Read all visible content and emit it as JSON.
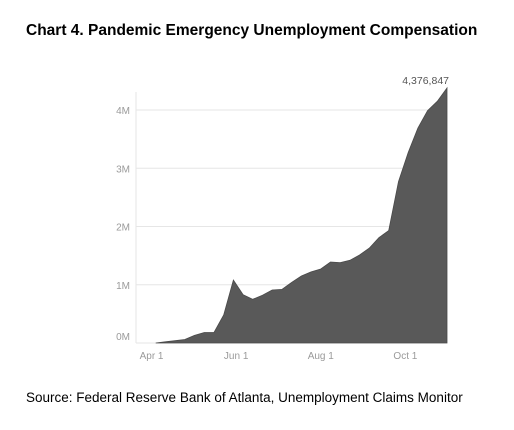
{
  "title": "Chart 4. Pandemic Emergency Unemployment Compensation",
  "source": "Source: Federal Reserve Bank of Atlanta, Unemployment Claims Monitor",
  "colors": {
    "area": "#595959",
    "grid": "#e6e6e6",
    "ticks": "#9a9a9a"
  },
  "chart_data": {
    "type": "area",
    "title": "Chart 4. Pandemic Emergency Unemployment Compensation",
    "xlabel": "",
    "ylabel": "",
    "x_ticks": [
      "Apr 1",
      "Jun 1",
      "Aug 1",
      "Oct 1"
    ],
    "y_ticks": [
      "0M",
      "1M",
      "2M",
      "3M",
      "4M"
    ],
    "ylim": [
      0,
      4500000
    ],
    "grid": true,
    "series": [
      {
        "x": [
          "2020-04-04",
          "2020-04-11",
          "2020-04-18",
          "2020-04-25",
          "2020-05-02",
          "2020-05-09",
          "2020-05-16",
          "2020-05-23",
          "2020-05-30",
          "2020-06-06",
          "2020-06-13",
          "2020-06-20",
          "2020-06-27",
          "2020-07-04",
          "2020-07-11",
          "2020-07-18",
          "2020-07-25",
          "2020-08-01",
          "2020-08-08",
          "2020-08-15",
          "2020-08-22",
          "2020-08-29",
          "2020-09-05",
          "2020-09-12",
          "2020-09-19",
          "2020-09-26",
          "2020-10-03",
          "2020-10-10",
          "2020-10-17",
          "2020-10-24",
          "2020-10-31"
        ],
        "values": [
          0,
          20000,
          40000,
          60000,
          130000,
          180000,
          180000,
          480000,
          1080000,
          830000,
          750000,
          820000,
          910000,
          920000,
          1040000,
          1150000,
          1220000,
          1270000,
          1390000,
          1380000,
          1420000,
          1510000,
          1630000,
          1810000,
          1930000,
          2770000,
          3270000,
          3690000,
          3990000,
          4150000,
          4376847
        ]
      }
    ],
    "annotations": [
      {
        "text": "4,376,847",
        "x": "2020-10-31",
        "y": 4376847
      }
    ]
  }
}
